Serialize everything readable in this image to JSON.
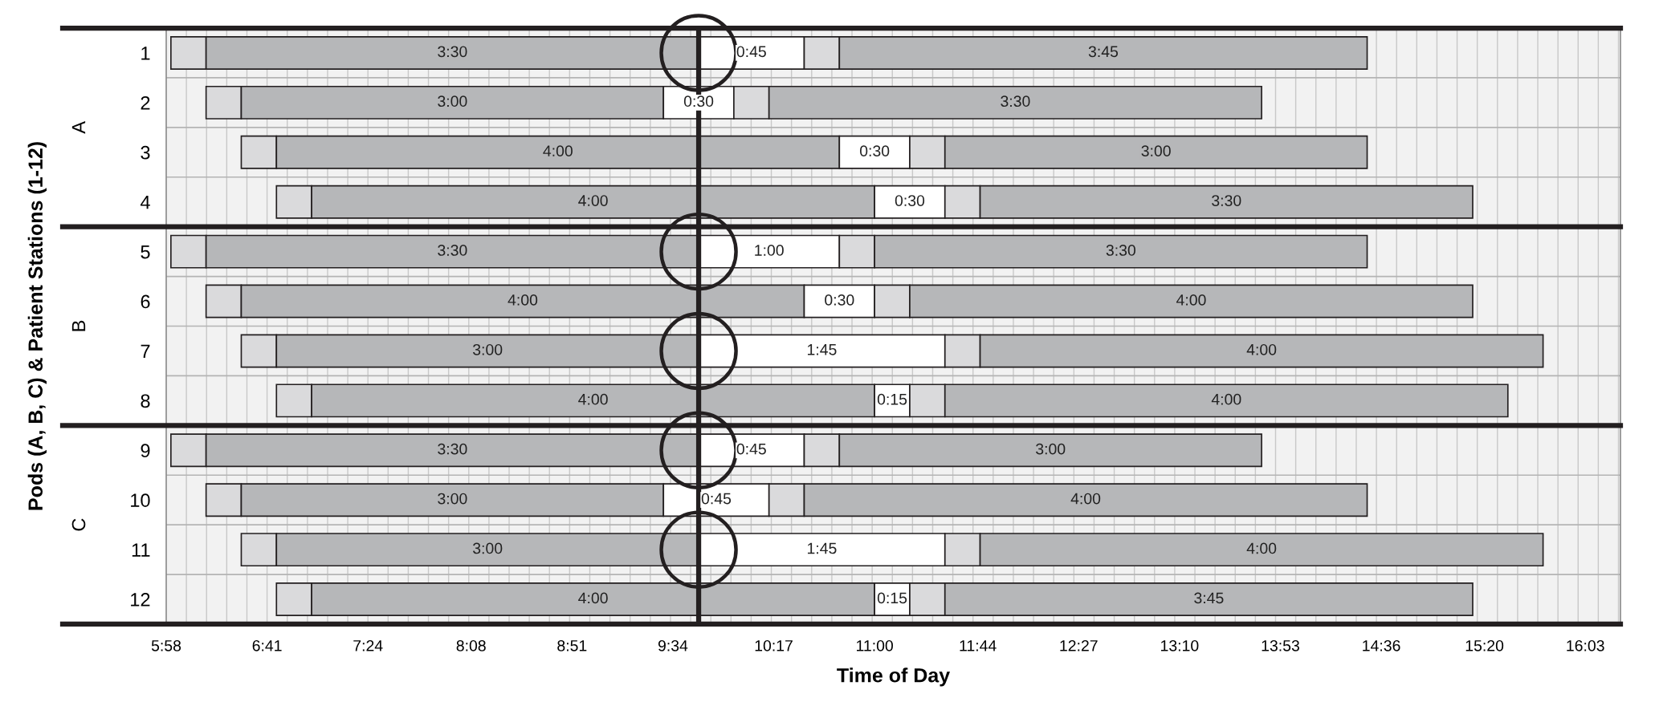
{
  "chart_data": {
    "type": "bar",
    "orientation": "horizontal",
    "xlabel": "Time of Day",
    "ylabel": "Pods (A, B, C) & Patient Stations (1-12)",
    "annotations": [
      "A",
      "B",
      "C"
    ],
    "categories": [
      "1",
      "2",
      "3",
      "4",
      "5",
      "6",
      "7",
      "8",
      "9",
      "10",
      "11",
      "12"
    ],
    "series": [
      {
        "color": "#dadadc",
        "base": [
          6,
          6.25,
          6.5,
          6.75,
          6,
          6.25,
          6.5,
          6.75,
          6,
          6.25,
          6.5,
          6.75
        ],
        "values": [
          0.25,
          0.25,
          0.25,
          0.25,
          0.25,
          0.25,
          0.25,
          0.25,
          0.25,
          0.25,
          0.25,
          0.25
        ]
      },
      {
        "color": "#b6b7b9",
        "base": [
          6.25,
          6.5,
          6.75,
          7,
          6.25,
          6.5,
          6.75,
          7,
          6.25,
          6.5,
          6.75,
          7
        ],
        "values": [
          3.5,
          3,
          4,
          4,
          3.5,
          4,
          3,
          4,
          3.5,
          3,
          3,
          4
        ],
        "value_labels": [
          "3:30",
          "3:00",
          "4:00",
          "4:00",
          "3:30",
          "4:00",
          "3:00",
          "4:00",
          "3:30",
          "3:00",
          "3:00",
          "4:00"
        ]
      },
      {
        "color": "#ffffff",
        "base": [
          9.75,
          9.5,
          10.75,
          11,
          9.75,
          10.5,
          9.75,
          11,
          9.75,
          9.5,
          9.75,
          11
        ],
        "values": [
          0.75,
          0.5,
          0.5,
          0.5,
          1,
          0.5,
          1.75,
          0.25,
          0.75,
          0.75,
          1.75,
          0.25
        ],
        "value_labels": [
          "0:45",
          "0:30",
          "0:30",
          "0:30",
          "1:00",
          "0:30",
          "1:45",
          "0:15",
          "0:45",
          "0:45",
          "1:45",
          "0:15"
        ]
      },
      {
        "color": "#dadadc",
        "base": [
          10.5,
          10,
          11.25,
          11.5,
          10.75,
          11,
          11.5,
          11.25,
          10.5,
          10.25,
          11.5,
          11.25
        ],
        "values": [
          0.25,
          0.25,
          0.25,
          0.25,
          0.25,
          0.25,
          0.25,
          0.25,
          0.25,
          0.25,
          0.25,
          0.25
        ]
      },
      {
        "color": "#b6b7b9",
        "base": [
          10.75,
          10.25,
          11.5,
          11.75,
          11,
          11.25,
          11.75,
          11.5,
          10.75,
          10.5,
          11.75,
          11.5
        ],
        "values": [
          3.75,
          3.5,
          3,
          3.5,
          3.5,
          4,
          4,
          4,
          3,
          4,
          4,
          3.75
        ],
        "value_labels": [
          "3:45",
          "3:30",
          "3:00",
          "3:30",
          "3:30",
          "4:00",
          "4:00",
          "4:00",
          "3:00",
          "4:00",
          "4:00",
          "3:45"
        ]
      },
      {
        "type": "scatter",
        "marker": "circle",
        "color": "#231f20",
        "values": [
          9.75,
          null,
          null,
          null,
          9.75,
          null,
          9.75,
          null,
          9.75,
          null,
          9.75,
          null
        ]
      }
    ],
    "ref_lines": [
      {
        "axis": "x",
        "value": 9.75,
        "color": "#231f20"
      }
    ],
    "xlim": [
      5.9667,
      16.3
    ],
    "xticks": [
      {
        "value": 5.9667,
        "label": "5:58"
      },
      {
        "value": 6.6833,
        "label": "6:41"
      },
      {
        "value": 7.4,
        "label": "7:24"
      },
      {
        "value": 8.1333,
        "label": "8:08"
      },
      {
        "value": 8.85,
        "label": "8:51"
      },
      {
        "value": 9.5667,
        "label": "9:34"
      },
      {
        "value": 10.2833,
        "label": "10:17"
      },
      {
        "value": 11.0,
        "label": "11:00"
      },
      {
        "value": 11.7333,
        "label": "11:44"
      },
      {
        "value": 12.45,
        "label": "12:27"
      },
      {
        "value": 13.1667,
        "label": "13:10"
      },
      {
        "value": 13.8833,
        "label": "13:53"
      },
      {
        "value": 14.6,
        "label": "14:36"
      },
      {
        "value": 15.3333,
        "label": "15:20"
      },
      {
        "value": 16.05,
        "label": "16:03"
      }
    ],
    "grid": true
  }
}
